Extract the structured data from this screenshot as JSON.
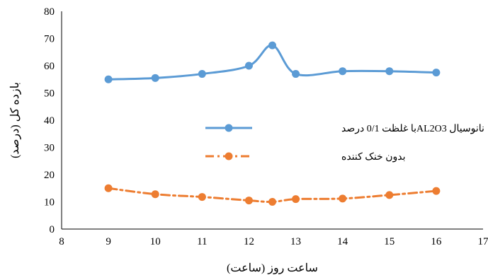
{
  "chart_data": {
    "type": "line",
    "xlabel": "ساعت روز (ساعت)",
    "ylabel": "بازده کل (درصد)",
    "xlim": [
      8,
      17
    ],
    "ylim": [
      0,
      80
    ],
    "x_ticks": [
      8,
      9,
      10,
      11,
      12,
      13,
      14,
      15,
      16,
      17
    ],
    "y_ticks": [
      0,
      10,
      20,
      30,
      40,
      50,
      60,
      70,
      80
    ],
    "grid": false,
    "legend_position": "center-right",
    "series": [
      {
        "name": "نانوسیال AL2O3با غلظت 0/1 درصد",
        "color": "#5B9BD5",
        "line_style": "solid",
        "x": [
          9,
          10,
          11,
          12,
          12.5,
          13,
          14,
          15,
          16
        ],
        "values": [
          55,
          55.5,
          57,
          60,
          67.5,
          57,
          58,
          58,
          57.5
        ]
      },
      {
        "name": "بدون خنک کننده",
        "color": "#ED7D31",
        "line_style": "dash-dot",
        "x": [
          9,
          10,
          11,
          12,
          12.5,
          13,
          14,
          15,
          16
        ],
        "values": [
          15,
          12.8,
          11.8,
          10.5,
          10,
          11,
          11.2,
          12.5,
          14
        ]
      }
    ]
  }
}
